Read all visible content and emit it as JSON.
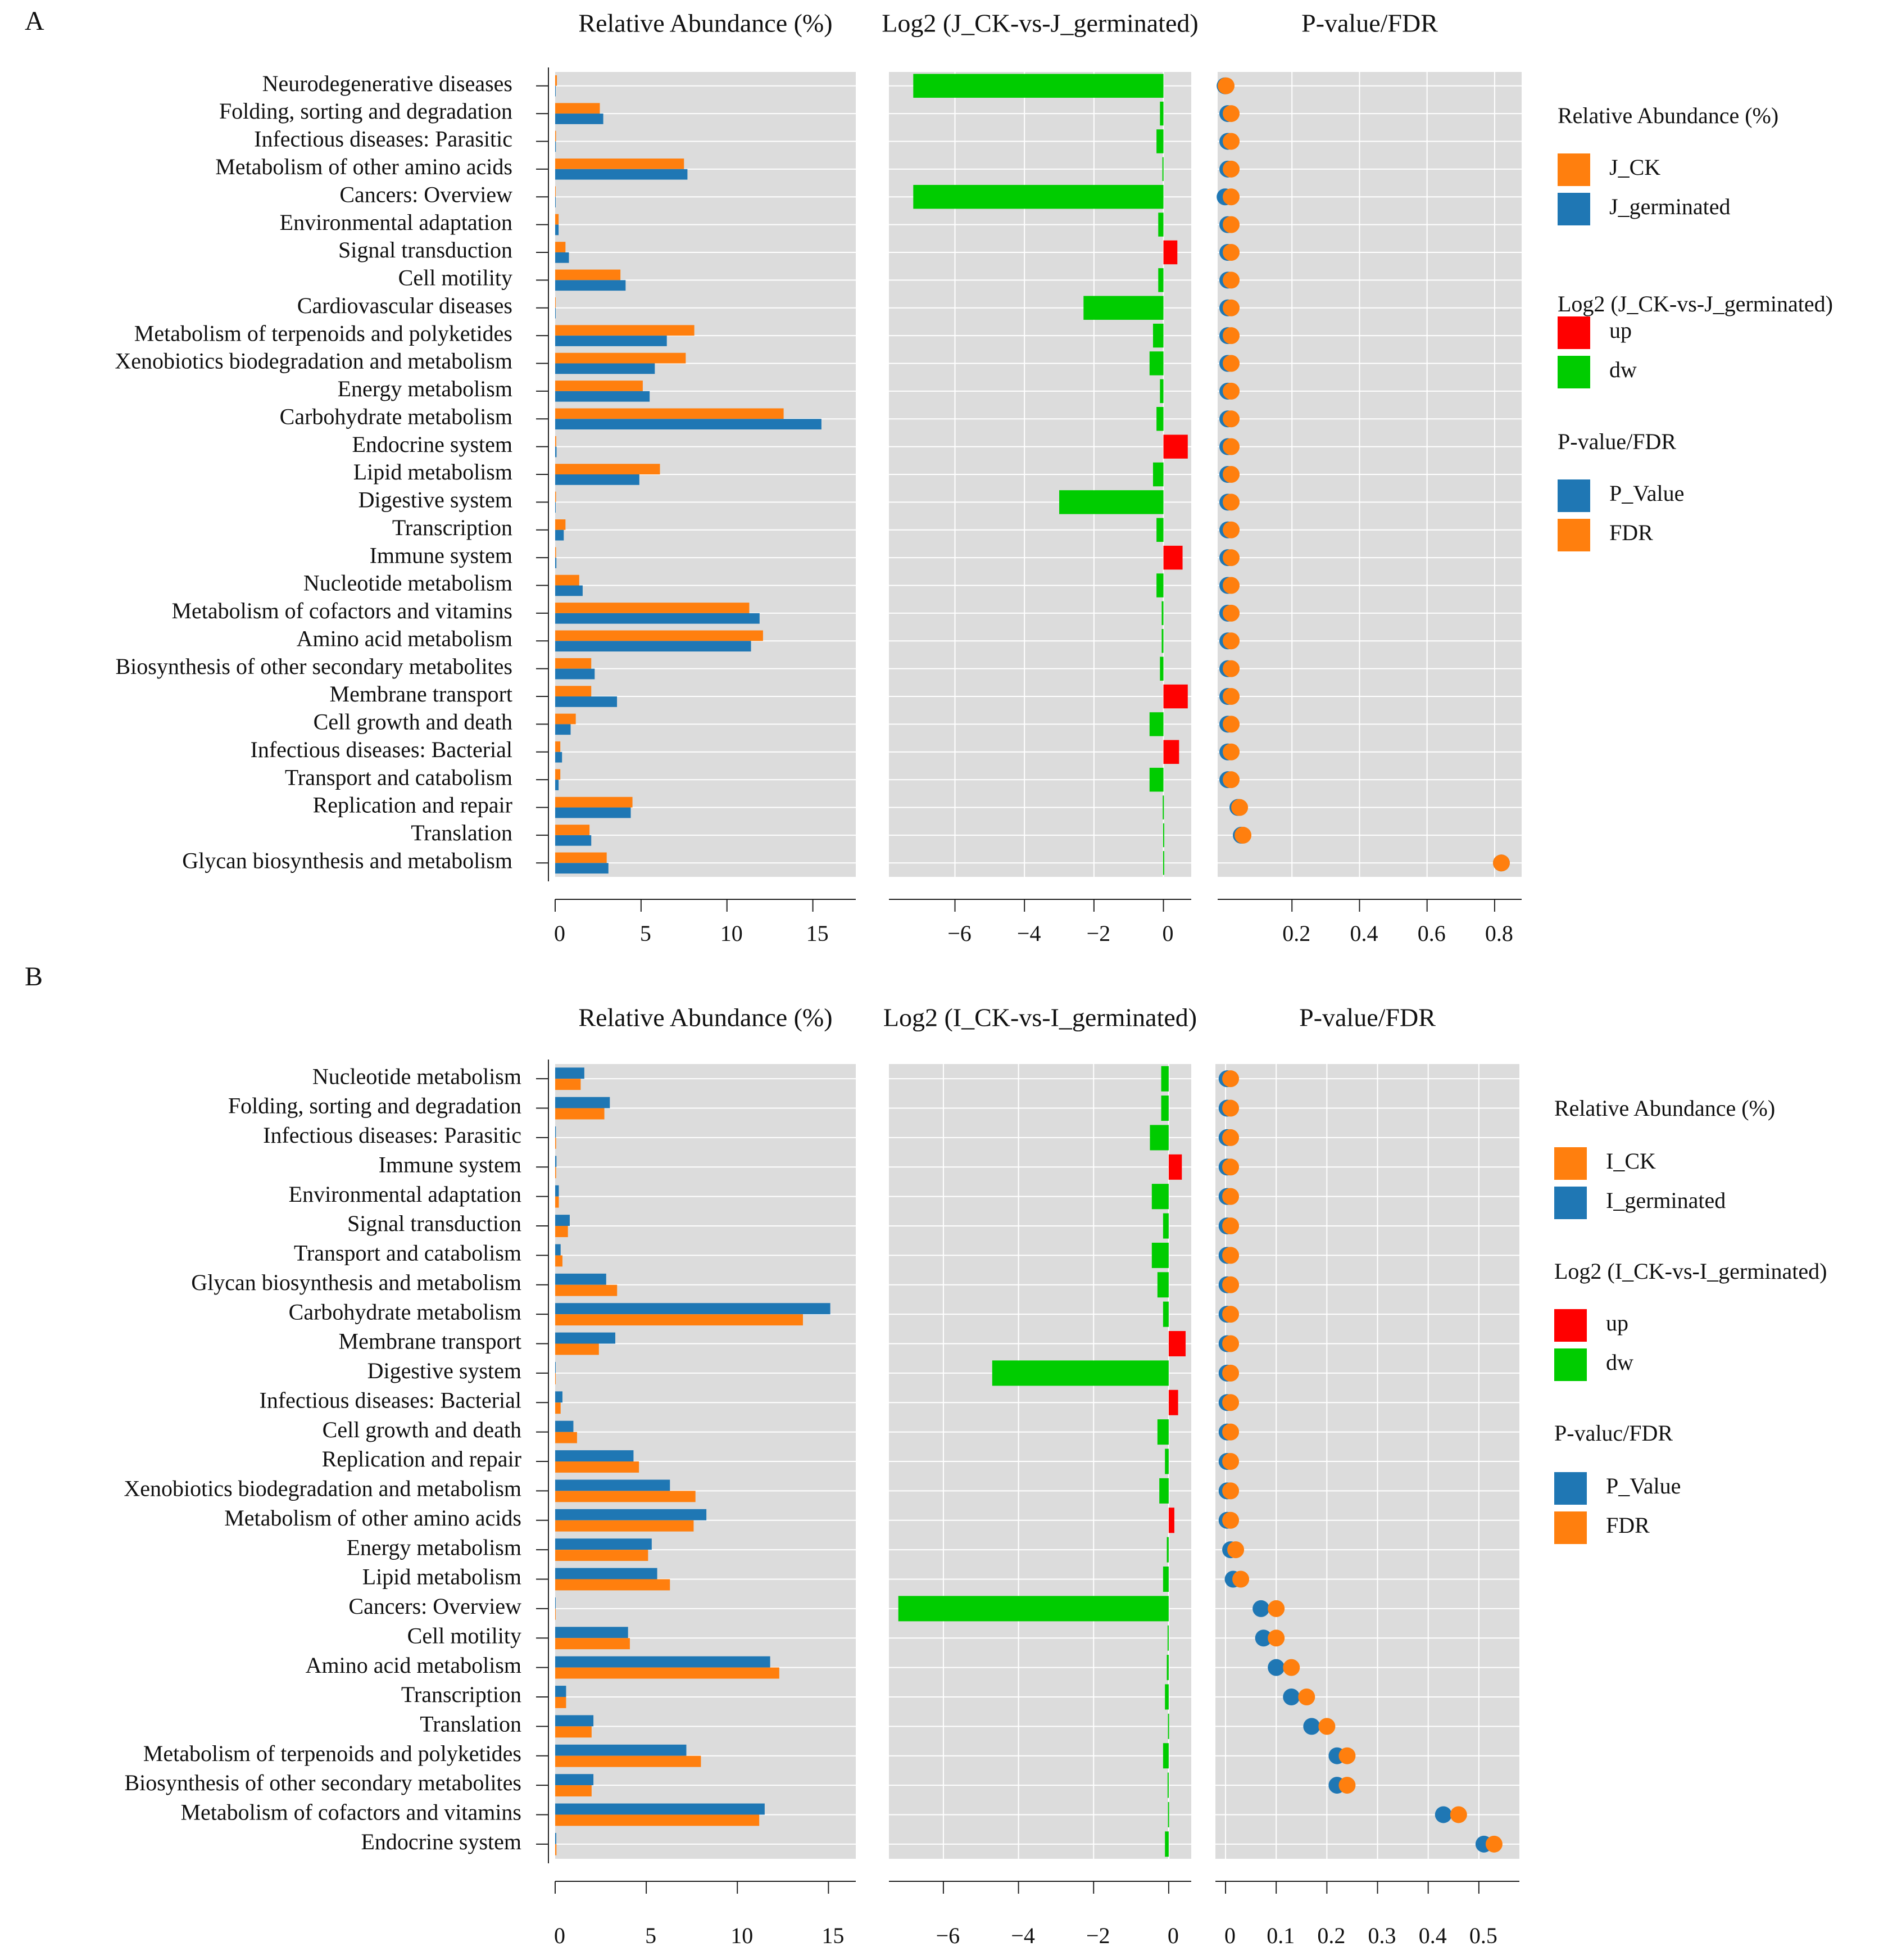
{
  "panels": [
    {
      "letter": "A",
      "ab_title": "Relative Abundance (%)",
      "log_title": "Log2 (J_CK-vs-J_germinated)",
      "p_title": "P-value/FDR",
      "legend": {
        "ab_title": "Relative Abundance (%)",
        "ab_items": [
          "J_CK",
          "J_germinated"
        ],
        "log_title": "Log2 (J_CK-vs-J_germinated)",
        "log_items": [
          "up",
          "dw"
        ],
        "p_title": "P-value/FDR",
        "p_items": [
          "P_Value",
          "FDR"
        ]
      }
    },
    {
      "letter": "B",
      "ab_title": "Relative Abundance (%)",
      "log_title": "Log2 (I_CK-vs-I_germinated)",
      "p_title": "P-value/FDR",
      "legend": {
        "ab_title": "Relative Abundance (%)",
        "ab_items": [
          "I_CK",
          "I_germinated"
        ],
        "log_title": "Log2 (I_CK-vs-I_germinated)",
        "log_items": [
          "up",
          "dw"
        ],
        "p_title": "P-valuc/FDR",
        "p_items": [
          "P_Value",
          "FDR"
        ]
      }
    }
  ],
  "colors": {
    "ck": "#ff7f0e",
    "germinated": "#1f77b4",
    "up": "#ff0000",
    "dw": "#00cc00",
    "panel_bg": "#dcdcdc",
    "grid": "#ffffff"
  },
  "chart_data": [
    {
      "type": "bar",
      "panel": "A",
      "categories": [
        "Neurodegenerative diseases",
        "Folding, sorting and degradation",
        "Infectious diseases: Parasitic",
        "Metabolism of other amino acids",
        "Cancers: Overview",
        "Environmental adaptation",
        "Signal transduction",
        "Cell motility",
        "Cardiovascular diseases",
        "Metabolism of terpenoids and polyketides",
        "Xenobiotics biodegradation and metabolism",
        "Energy metabolism",
        "Carbohydrate metabolism",
        "Endocrine system",
        "Lipid metabolism",
        "Digestive system",
        "Transcription",
        "Immune system",
        "Nucleotide metabolism",
        "Metabolism of cofactors and vitamins",
        "Amino acid metabolism",
        "Biosynthesis of other secondary metabolites",
        "Membrane transport",
        "Cell growth and death",
        "Infectious diseases: Bacterial",
        "Transport and catabolism",
        "Replication and repair",
        "Translation",
        "Glycan biosynthesis and metabolism"
      ],
      "series": [
        {
          "name": "J_CK",
          "values": [
            0.1,
            2.6,
            0.05,
            7.5,
            0.03,
            0.2,
            0.6,
            3.8,
            0.03,
            8.1,
            7.6,
            5.1,
            13.3,
            0.06,
            6.1,
            0.05,
            0.6,
            0.05,
            1.4,
            11.3,
            12.1,
            2.1,
            2.1,
            1.2,
            0.3,
            0.3,
            4.5,
            2.0,
            3.0
          ]
        },
        {
          "name": "J_germinated",
          "values": [
            0.01,
            2.8,
            0.04,
            7.7,
            0.01,
            0.2,
            0.8,
            4.1,
            0.01,
            6.5,
            5.8,
            5.5,
            15.5,
            0.08,
            4.9,
            0.01,
            0.5,
            0.07,
            1.6,
            11.9,
            11.4,
            2.3,
            3.6,
            0.9,
            0.4,
            0.2,
            4.4,
            2.1,
            3.1
          ]
        }
      ],
      "log2": [
        -7.2,
        -0.1,
        -0.2,
        -0.03,
        -7.2,
        -0.15,
        0.4,
        -0.15,
        -2.3,
        -0.3,
        -0.4,
        -0.1,
        -0.2,
        0.7,
        -0.3,
        -3.0,
        -0.2,
        0.55,
        -0.2,
        -0.05,
        -0.05,
        -0.1,
        0.7,
        -0.4,
        0.45,
        -0.4,
        -0.02,
        -0.01,
        -0.01
      ],
      "p_value": [
        0.002,
        0.01,
        0.01,
        0.01,
        0.002,
        0.01,
        0.01,
        0.01,
        0.01,
        0.01,
        0.01,
        0.01,
        0.01,
        0.01,
        0.01,
        0.01,
        0.01,
        0.01,
        0.01,
        0.01,
        0.01,
        0.01,
        0.01,
        0.01,
        0.01,
        0.01,
        0.04,
        0.05,
        0.82
      ],
      "fdr": [
        0.005,
        0.02,
        0.02,
        0.02,
        0.02,
        0.02,
        0.02,
        0.02,
        0.02,
        0.02,
        0.02,
        0.02,
        0.02,
        0.02,
        0.02,
        0.02,
        0.02,
        0.02,
        0.02,
        0.02,
        0.02,
        0.02,
        0.02,
        0.02,
        0.02,
        0.02,
        0.045,
        0.055,
        0.82
      ],
      "ab_ticks": [
        0,
        5,
        10,
        15
      ],
      "ab_xlim": [
        0,
        17.5
      ],
      "log_ticks": [
        -6,
        -4,
        -2,
        0
      ],
      "log_xlim": [
        -7.9,
        0.8
      ],
      "p_ticks": [
        0.2,
        0.4,
        0.6,
        0.8
      ],
      "p_labels": [
        "0.2",
        "0.4",
        "0.6",
        "0.8"
      ],
      "p_xlim": [
        -0.02,
        0.88
      ]
    },
    {
      "type": "bar",
      "panel": "B",
      "categories": [
        "Nucleotide metabolism",
        "Folding, sorting and degradation",
        "Infectious diseases: Parasitic",
        "Immune system",
        "Environmental adaptation",
        "Signal transduction",
        "Transport and catabolism",
        "Glycan biosynthesis and metabolism",
        "Carbohydrate metabolism",
        "Membrane transport",
        "Digestive system",
        "Infectious diseases: Bacterial",
        "Cell growth and death",
        "Replication and repair",
        "Xenobiotics biodegradation and metabolism",
        "Metabolism of other amino acids",
        "Energy metabolism",
        "Lipid metabolism",
        "Cancers: Overview",
        "Cell motility",
        "Amino acid metabolism",
        "Transcription",
        "Translation",
        "Metabolism of terpenoids and polyketides",
        "Biosynthesis of other secondary metabolites",
        "Metabolism of cofactors and vitamins",
        "Endocrine system"
      ],
      "series": [
        {
          "name": "I_CK",
          "values": [
            1.4,
            2.7,
            0.05,
            0.05,
            0.2,
            0.7,
            0.4,
            3.4,
            13.6,
            2.4,
            0.03,
            0.3,
            1.2,
            4.6,
            7.7,
            7.6,
            5.1,
            6.3,
            0.03,
            4.1,
            12.3,
            0.6,
            2.0,
            8.0,
            2.0,
            11.2,
            0.07
          ]
        },
        {
          "name": "I_germinated",
          "values": [
            1.6,
            3.0,
            0.04,
            0.07,
            0.2,
            0.8,
            0.3,
            2.8,
            15.1,
            3.3,
            0.01,
            0.4,
            1.0,
            4.3,
            6.3,
            8.3,
            5.3,
            5.6,
            0.01,
            4.0,
            11.8,
            0.6,
            2.1,
            7.2,
            2.1,
            11.5,
            0.06
          ]
        }
      ],
      "log2": [
        -0.2,
        -0.2,
        -0.5,
        0.35,
        -0.45,
        -0.15,
        -0.45,
        -0.3,
        -0.15,
        0.45,
        -4.7,
        0.25,
        -0.3,
        -0.1,
        -0.25,
        0.15,
        -0.05,
        -0.15,
        -7.2,
        -0.03,
        -0.05,
        -0.1,
        -0.02,
        -0.15,
        -0.03,
        -0.02,
        -0.1
      ],
      "p_value": [
        0.003,
        0.003,
        0.003,
        0.003,
        0.003,
        0.003,
        0.003,
        0.003,
        0.003,
        0.003,
        0.003,
        0.003,
        0.003,
        0.003,
        0.003,
        0.003,
        0.01,
        0.015,
        0.07,
        0.075,
        0.1,
        0.13,
        0.17,
        0.22,
        0.22,
        0.43,
        0.51
      ],
      "fdr": [
        0.01,
        0.01,
        0.01,
        0.01,
        0.01,
        0.01,
        0.01,
        0.01,
        0.01,
        0.01,
        0.01,
        0.01,
        0.01,
        0.01,
        0.01,
        0.01,
        0.02,
        0.03,
        0.1,
        0.1,
        0.13,
        0.16,
        0.2,
        0.24,
        0.24,
        0.46,
        0.53
      ],
      "ab_ticks": [
        0,
        5,
        10,
        15
      ],
      "ab_xlim": [
        0,
        16.5
      ],
      "log_ticks": [
        -6,
        -4,
        -2,
        0
      ],
      "log_xlim": [
        -7.45,
        0.6
      ],
      "p_ticks": [
        0,
        0.1,
        0.2,
        0.3,
        0.4,
        0.5
      ],
      "p_labels": [
        "0",
        "0.1",
        "0.2",
        "0.3",
        "0.4",
        "0.5"
      ],
      "p_xlim": [
        -0.02,
        0.58
      ]
    }
  ]
}
